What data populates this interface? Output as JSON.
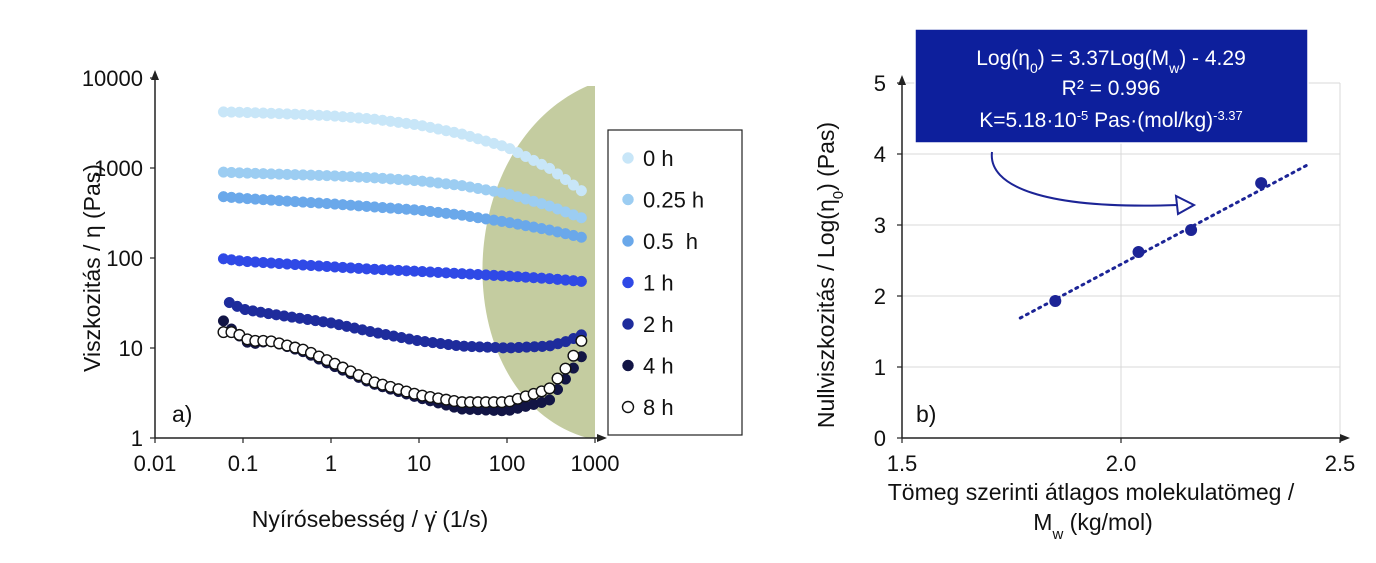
{
  "chart_data": [
    {
      "type": "scatter",
      "panel_label": "a)",
      "xlabel": "Nyírósebesség / γ̇ (1/s)",
      "ylabel": "Viszkozitás / η (Pas)",
      "x_scale": "log",
      "y_scale": "log",
      "xlim": [
        0.01,
        1000
      ],
      "ylim": [
        1,
        10000
      ],
      "x_ticks": [
        "0.01",
        "0.1",
        "1",
        "10",
        "100",
        "1000"
      ],
      "y_ticks": [
        "1",
        "10",
        "100",
        "1000",
        "10000"
      ],
      "grid": false,
      "legend_position": "right",
      "shaded_region": {
        "color": "#c4cca0",
        "x_from": 60,
        "x_to": 700
      },
      "series": [
        {
          "name": "0 h",
          "color": "#c8e6f8",
          "filled": true,
          "x": [
            0.06,
            0.1,
            0.3,
            1,
            3,
            10,
            30,
            100,
            300,
            700
          ],
          "y": [
            4200,
            4150,
            4000,
            3800,
            3500,
            3000,
            2400,
            1700,
            1000,
            560
          ]
        },
        {
          "name": "0.25 h",
          "color": "#9ccdf2",
          "filled": true,
          "x": [
            0.06,
            0.1,
            0.3,
            1,
            3,
            10,
            30,
            100,
            300,
            700
          ],
          "y": [
            900,
            880,
            850,
            820,
            780,
            720,
            640,
            520,
            380,
            280
          ]
        },
        {
          "name": "0.5  h",
          "color": "#6aa8ea",
          "filled": true,
          "x": [
            0.06,
            0.1,
            0.3,
            1,
            3,
            10,
            30,
            100,
            300,
            700
          ],
          "y": [
            480,
            460,
            430,
            400,
            370,
            340,
            300,
            250,
            205,
            170
          ]
        },
        {
          "name": "1 h",
          "color": "#2f49e6",
          "filled": true,
          "x": [
            0.06,
            0.1,
            0.3,
            1,
            3,
            10,
            30,
            100,
            300,
            700
          ],
          "y": [
            98,
            92,
            86,
            80,
            75,
            71,
            67,
            63,
            59,
            55
          ]
        },
        {
          "name": "2 h",
          "color": "#1e2c9c",
          "filled": true,
          "x": [
            0.07,
            0.1,
            0.2,
            0.5,
            1,
            3,
            10,
            30,
            100,
            300,
            500,
            700
          ],
          "y": [
            32,
            27,
            24,
            21,
            19,
            15,
            12,
            10.5,
            10,
            10.5,
            12,
            14
          ]
        },
        {
          "name": "4 h",
          "color": "#121545",
          "filled": true,
          "x": [
            0.06,
            0.08,
            0.12,
            0.2,
            0.5,
            1,
            3,
            10,
            30,
            100,
            300,
            500,
            700
          ],
          "y": [
            20,
            15,
            11,
            12,
            9,
            6.5,
            4,
            2.8,
            2.1,
            2,
            2.6,
            5,
            8
          ]
        },
        {
          "name": "8 h",
          "color": "#111111",
          "filled": false,
          "x": [
            0.06,
            0.08,
            0.12,
            0.2,
            0.5,
            1,
            3,
            10,
            30,
            100,
            300,
            500,
            700
          ],
          "y": [
            15,
            15,
            12,
            12,
            9.5,
            7,
            4.2,
            3,
            2.5,
            2.5,
            3.5,
            6.5,
            12
          ]
        }
      ]
    },
    {
      "type": "scatter",
      "panel_label": "b)",
      "xlabel_line1": "Tömeg szerinti átlagos molekulatömeg /",
      "xlabel_line2_main": "M",
      "xlabel_line2_sub": "w",
      "xlabel_line2_rest": " (kg/mol)",
      "ylabel_main": "Nullviszkozitás /  Log(η",
      "ylabel_sub": "0",
      "ylabel_rest": ") (Pas)",
      "xlim": [
        1.5,
        2.5
      ],
      "ylim": [
        0,
        5
      ],
      "x_ticks": [
        "1.5",
        "2.0",
        "2.5"
      ],
      "y_ticks": [
        "0",
        "1",
        "2",
        "3",
        "4",
        "5"
      ],
      "grid": true,
      "points": {
        "x": [
          1.85,
          2.04,
          2.16,
          2.32
        ],
        "y": [
          1.93,
          2.62,
          2.93,
          3.59
        ],
        "color": "#1c2496"
      },
      "trendline": {
        "x": [
          1.77,
          2.43
        ],
        "y": [
          1.69,
          3.86
        ],
        "color": "#1c2496",
        "style": "dotted"
      },
      "annotation": {
        "background": "#0d1f9c",
        "line1": {
          "a": "Log(η",
          "a_sub": "0",
          "b": ") = 3.37Log(M",
          "b_sub": "w",
          "c": ") - 4.29"
        },
        "line2": "R² = 0.996",
        "line3": {
          "a": "K=5.18·10",
          "sup1": "-5",
          "b": " Pas·(mol/kg)",
          "sup2": "-3.37"
        }
      }
    }
  ]
}
